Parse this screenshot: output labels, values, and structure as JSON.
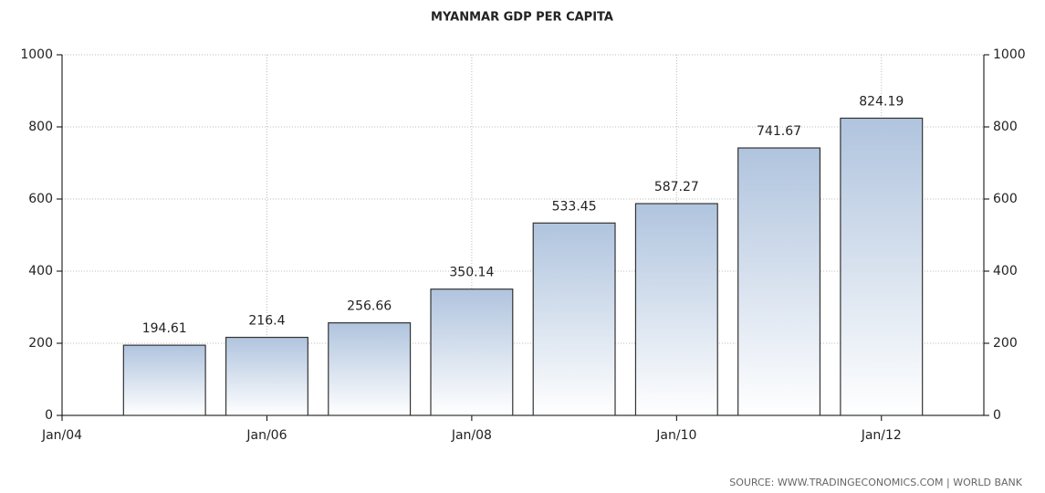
{
  "chart_data": {
    "type": "bar",
    "title": "MYANMAR GDP PER CAPITA",
    "source": "SOURCE:  WWW.TRADINGECONOMICS.COM  |  WORLD BANK",
    "x": [
      2005,
      2006,
      2007,
      2008,
      2009,
      2010,
      2011,
      2012
    ],
    "values": [
      194.61,
      216.4,
      256.66,
      350.14,
      533.45,
      587.27,
      741.67,
      824.19
    ],
    "color": "#b0c4de",
    "xlim": [
      2004,
      2013
    ],
    "xticks": [
      {
        "value": 2004,
        "label": "Jan/04"
      },
      {
        "value": 2006,
        "label": "Jan/06"
      },
      {
        "value": 2008,
        "label": "Jan/08"
      },
      {
        "value": 2010,
        "label": "Jan/10"
      },
      {
        "value": 2012,
        "label": "Jan/12"
      }
    ],
    "ylim": [
      0,
      1000
    ],
    "yticks": [
      0,
      200,
      400,
      600,
      800,
      1000
    ],
    "y2lim": [
      0,
      1000
    ],
    "y2ticks": [
      0,
      200,
      400,
      600,
      800,
      1000
    ],
    "grid": true
  }
}
